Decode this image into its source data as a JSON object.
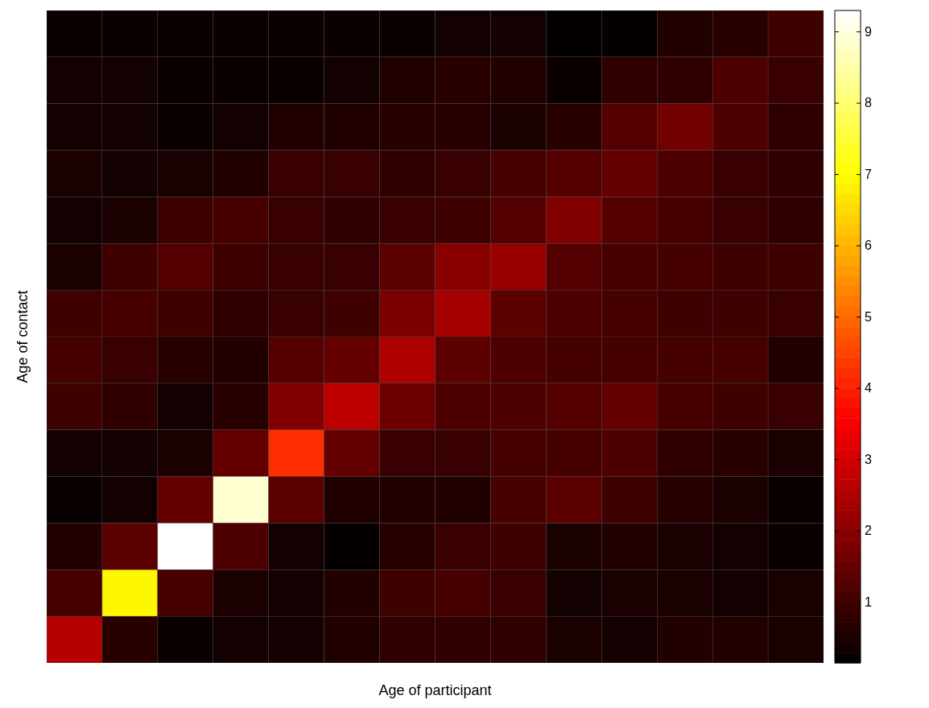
{
  "chart_data": {
    "type": "heatmap",
    "xlabel": "Age of participant",
    "ylabel": "Age of contact",
    "categories": [
      null,
      null,
      null,
      null,
      null,
      null,
      null,
      null,
      null,
      null,
      null,
      null,
      null,
      null
    ],
    "y_categories": [
      null,
      null,
      null,
      null,
      null,
      null,
      null,
      null,
      null,
      null,
      null,
      null,
      null,
      null
    ],
    "cells": [
      [
        0.3,
        0.3,
        0.3,
        0.3,
        0.3,
        0.3,
        0.3,
        0.4,
        0.4,
        0.2,
        0.2,
        0.6,
        0.7,
        1.0
      ],
      [
        0.4,
        0.4,
        0.3,
        0.3,
        0.3,
        0.4,
        0.6,
        0.7,
        0.6,
        0.3,
        0.8,
        0.8,
        1.2,
        0.9
      ],
      [
        0.4,
        0.4,
        0.3,
        0.4,
        0.6,
        0.6,
        0.7,
        0.7,
        0.5,
        0.7,
        1.3,
        1.7,
        1.2,
        0.8
      ],
      [
        0.5,
        0.4,
        0.5,
        0.6,
        0.9,
        0.9,
        0.8,
        0.9,
        1.1,
        1.3,
        1.5,
        1.2,
        0.9,
        0.8
      ],
      [
        0.4,
        0.5,
        1.0,
        1.1,
        0.9,
        0.8,
        0.9,
        1.0,
        1.3,
        1.9,
        1.3,
        1.1,
        0.9,
        0.8
      ],
      [
        0.5,
        1.0,
        1.3,
        1.0,
        0.9,
        0.9,
        1.4,
        2.0,
        2.2,
        1.3,
        1.1,
        1.1,
        1.0,
        1.0
      ],
      [
        1.0,
        1.1,
        1.0,
        0.8,
        0.9,
        1.0,
        1.8,
        2.4,
        1.4,
        1.2,
        1.1,
        1.0,
        1.0,
        0.9
      ],
      [
        1.1,
        0.9,
        0.7,
        0.6,
        1.3,
        1.5,
        2.5,
        1.4,
        1.2,
        1.1,
        1.1,
        1.1,
        1.1,
        0.6
      ],
      [
        1.0,
        0.8,
        0.4,
        0.7,
        1.9,
        2.7,
        1.6,
        1.2,
        1.2,
        1.3,
        1.5,
        1.1,
        1.0,
        0.9
      ],
      [
        0.4,
        0.4,
        0.5,
        1.5,
        4.2,
        1.5,
        0.9,
        0.9,
        1.1,
        1.1,
        1.2,
        0.8,
        0.7,
        0.5
      ],
      [
        0.3,
        0.4,
        1.5,
        8.9,
        1.4,
        0.6,
        0.6,
        0.6,
        1.1,
        1.4,
        1.0,
        0.7,
        0.5,
        0.3
      ],
      [
        0.6,
        1.4,
        9.3,
        1.2,
        0.4,
        0.2,
        0.7,
        0.9,
        1.0,
        0.5,
        0.6,
        0.5,
        0.4,
        0.3
      ],
      [
        1.1,
        6.9,
        1.1,
        0.5,
        0.4,
        0.6,
        1.0,
        1.1,
        0.9,
        0.4,
        0.5,
        0.5,
        0.4,
        0.5
      ],
      [
        2.6,
        0.7,
        0.3,
        0.4,
        0.4,
        0.6,
        0.8,
        0.8,
        0.8,
        0.5,
        0.4,
        0.6,
        0.6,
        0.5
      ]
    ],
    "clim": [
      0.15,
      9.3
    ],
    "cticks": [
      1,
      2,
      3,
      4,
      5,
      6,
      7,
      8,
      9
    ],
    "tick_labels": false
  }
}
